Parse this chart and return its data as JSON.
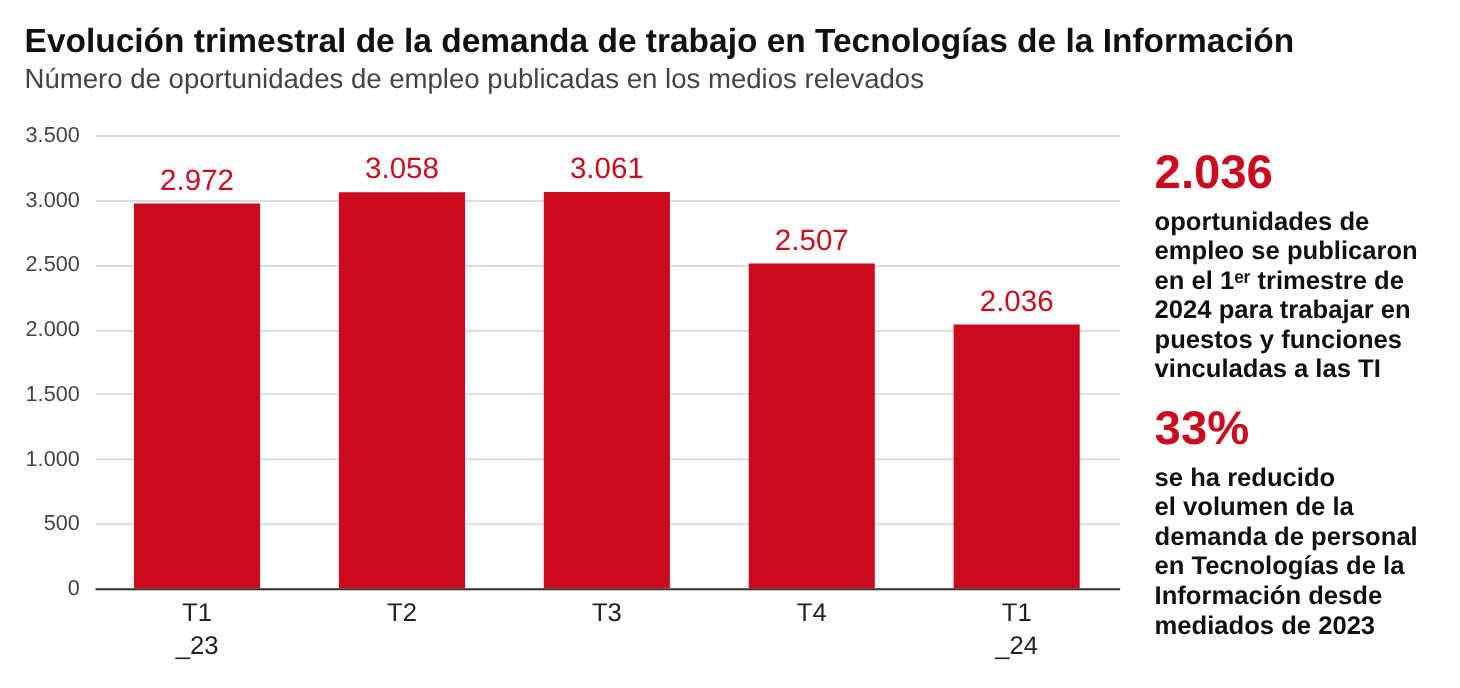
{
  "chart_data": {
    "type": "bar",
    "title": "Evolución trimestral de la demanda de trabajo en Tecnologías de la Información",
    "subtitle": "Número de oportunidades de empleo publicadas en los medios relevados",
    "categories": [
      "T1\n_23",
      "T2",
      "T3",
      "T4",
      "T1\n_24"
    ],
    "values": [
      2972,
      3058,
      3061,
      2507,
      2036
    ],
    "color": "#cc0a1e",
    "value_labels": [
      "2.972",
      "3.058",
      "3.061",
      "2.507",
      "2.036"
    ],
    "ylim": [
      0,
      3500
    ],
    "yticks": [
      {
        "value": 0,
        "label": "0"
      },
      {
        "value": 500,
        "label": "500"
      },
      {
        "value": 1000,
        "label": "1.000"
      },
      {
        "value": 1500,
        "label": "1.500"
      },
      {
        "value": 2000,
        "label": "2.000"
      },
      {
        "value": 2500,
        "label": "2.500"
      },
      {
        "value": 3000,
        "label": "3.000"
      },
      {
        "value": 3500,
        "label": "3.500"
      }
    ],
    "grid": "y",
    "annotations": [
      "2.036",
      "oportunidades de\nempleo se publicaron\nen el 1ᵉʳ trimestre de\n2024 para trabajar en\npuestos y funciones\nvinculadas a las TI",
      "33%",
      "se ha reducido\nel volumen de la\ndemanda de personal\nen Tecnologías de la\nInformación desde\nmediados de 2023"
    ]
  }
}
